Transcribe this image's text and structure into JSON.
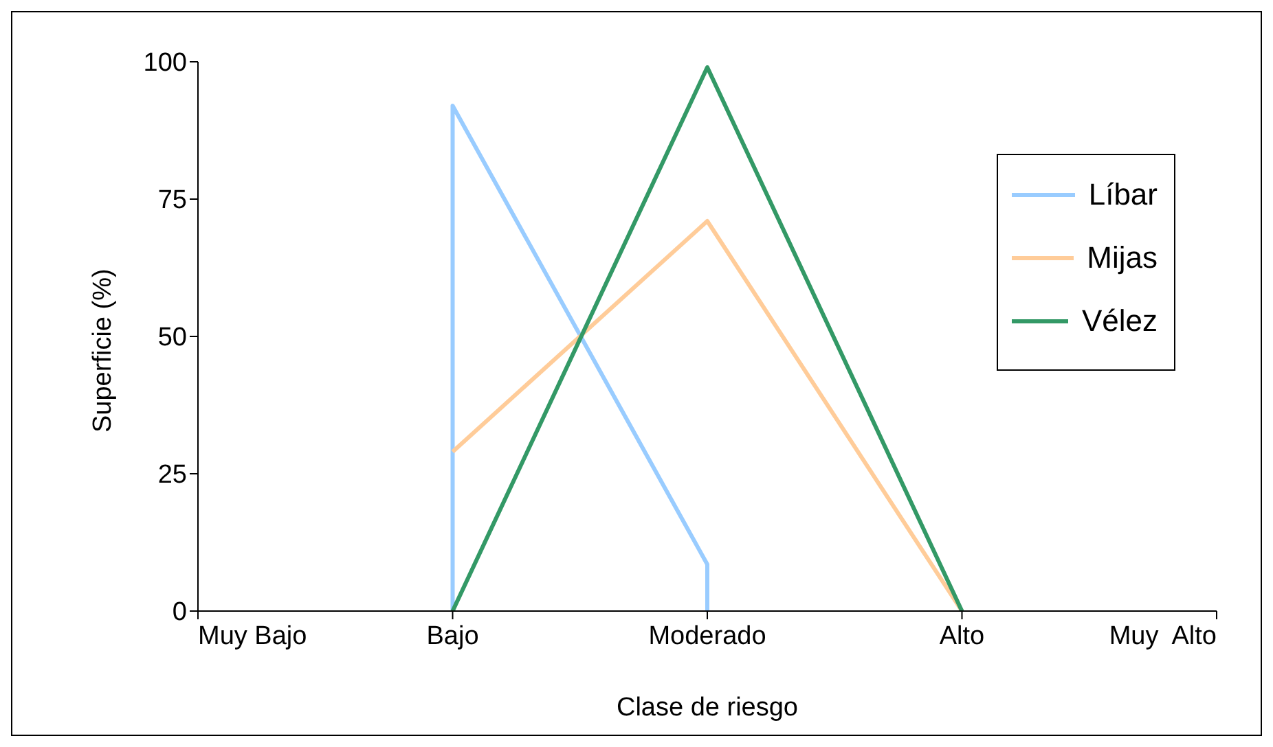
{
  "chart_data": {
    "type": "line",
    "xlabel": "Clase de riesgo",
    "ylabel": "Superficie (%)",
    "categories": [
      "Muy Bajo",
      "Bajo",
      "Moderado",
      "Alto",
      "Muy  Alto"
    ],
    "ylim": [
      0,
      100
    ],
    "yticks": [
      0,
      25,
      50,
      75,
      100
    ],
    "grid": false,
    "legend": "right",
    "marker": "none",
    "line_style": "solid",
    "series": [
      {
        "name": "Líbar",
        "color": "#99ccff",
        "x": [
          "Bajo",
          "Bajo",
          "Moderado",
          "Moderado"
        ],
        "values": [
          0,
          92,
          8.5,
          0
        ]
      },
      {
        "name": "Mijas",
        "color": "#ffcc99",
        "x": [
          "Bajo",
          "Moderado",
          "Alto"
        ],
        "values": [
          29,
          71,
          0
        ]
      },
      {
        "name": "Vélez",
        "color": "#339966",
        "x": [
          "Bajo",
          "Moderado",
          "Alto"
        ],
        "values": [
          0,
          99,
          0
        ]
      }
    ]
  }
}
